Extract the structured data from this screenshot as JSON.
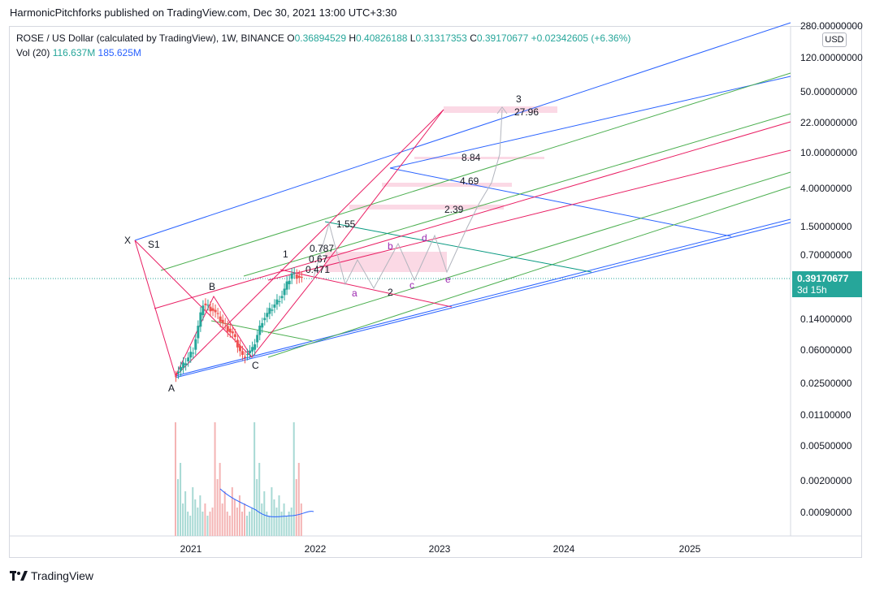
{
  "header": {
    "published": "HarmonicPitchforks published on TradingView.com, Dec 30, 2021 13:00 UTC+3:30"
  },
  "legend": {
    "symbol": "ROSE / US Dollar (calculated by TradingView), 1W, BINANCE",
    "open_label": "O",
    "open": "0.36894529",
    "high_label": "H",
    "high": "0.40826188",
    "low_label": "L",
    "low": "0.31317353",
    "close_label": "C",
    "close": "0.39170677",
    "change": "+0.02342605 (+6.36%)",
    "vol_label": "Vol (20)",
    "vol_value": "116.637M",
    "vol_ma": "185.625M"
  },
  "currency": "USD",
  "price_tag": {
    "price": "0.39170677",
    "countdown": "3d 15h"
  },
  "footer": {
    "brand": "TradingView"
  },
  "colors": {
    "up": "#26a69a",
    "down": "#ef5350",
    "blue": "#2962ff",
    "pink": "#e91e63",
    "green": "#4caf50"
  },
  "chart_data": {
    "type": "candlestick",
    "y_scale": "log",
    "y_ticks": [
      "280.00000000",
      "120.00000000",
      "50.00000000",
      "22.00000000",
      "10.00000000",
      "4.00000000",
      "1.50000000",
      "0.70000000",
      "0.39170677",
      "0.14000000",
      "0.06000000",
      "0.02500000",
      "0.01100000",
      "0.00500000",
      "0.00200000",
      "0.00090000"
    ],
    "x_ticks": [
      "2021",
      "2022",
      "2023",
      "2024",
      "2025"
    ],
    "pattern_labels": [
      "X",
      "S1",
      "A",
      "B",
      "C",
      "1",
      "2",
      "3"
    ],
    "wave_labels": [
      "a",
      "b",
      "c",
      "d",
      "e"
    ],
    "fib_labels": [
      "1.55",
      "0.787",
      "0.67",
      "0.471",
      "2.39",
      "4.69",
      "8.84",
      "27.96"
    ],
    "price_path": [
      {
        "date": "2020-11",
        "price": 0.03
      },
      {
        "date": "2020-12",
        "price": 0.04
      },
      {
        "date": "2021-01",
        "price": 0.06
      },
      {
        "date": "2021-02",
        "price": 0.2
      },
      {
        "date": "2021-03",
        "price": 0.17
      },
      {
        "date": "2021-04",
        "price": 0.12
      },
      {
        "date": "2021-05",
        "price": 0.09
      },
      {
        "date": "2021-06",
        "price": 0.05
      },
      {
        "date": "2021-07",
        "price": 0.06
      },
      {
        "date": "2021-08",
        "price": 0.13
      },
      {
        "date": "2021-09",
        "price": 0.18
      },
      {
        "date": "2021-10",
        "price": 0.25
      },
      {
        "date": "2021-11",
        "price": 0.44
      },
      {
        "date": "2021-12",
        "price": 0.39
      }
    ]
  }
}
